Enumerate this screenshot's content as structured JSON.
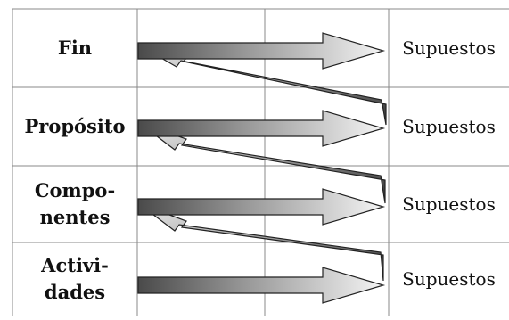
{
  "rows": [
    {
      "label": "Fin",
      "assumption": "Supuestos"
    },
    {
      "label": "Propósito",
      "assumption": "Supuestos"
    },
    {
      "label_lines": [
        "Compo-",
        "nentes"
      ],
      "assumption": "Supuestos"
    },
    {
      "label_lines": [
        "Activi-",
        "dades"
      ],
      "assumption": "Supuestos"
    }
  ]
}
